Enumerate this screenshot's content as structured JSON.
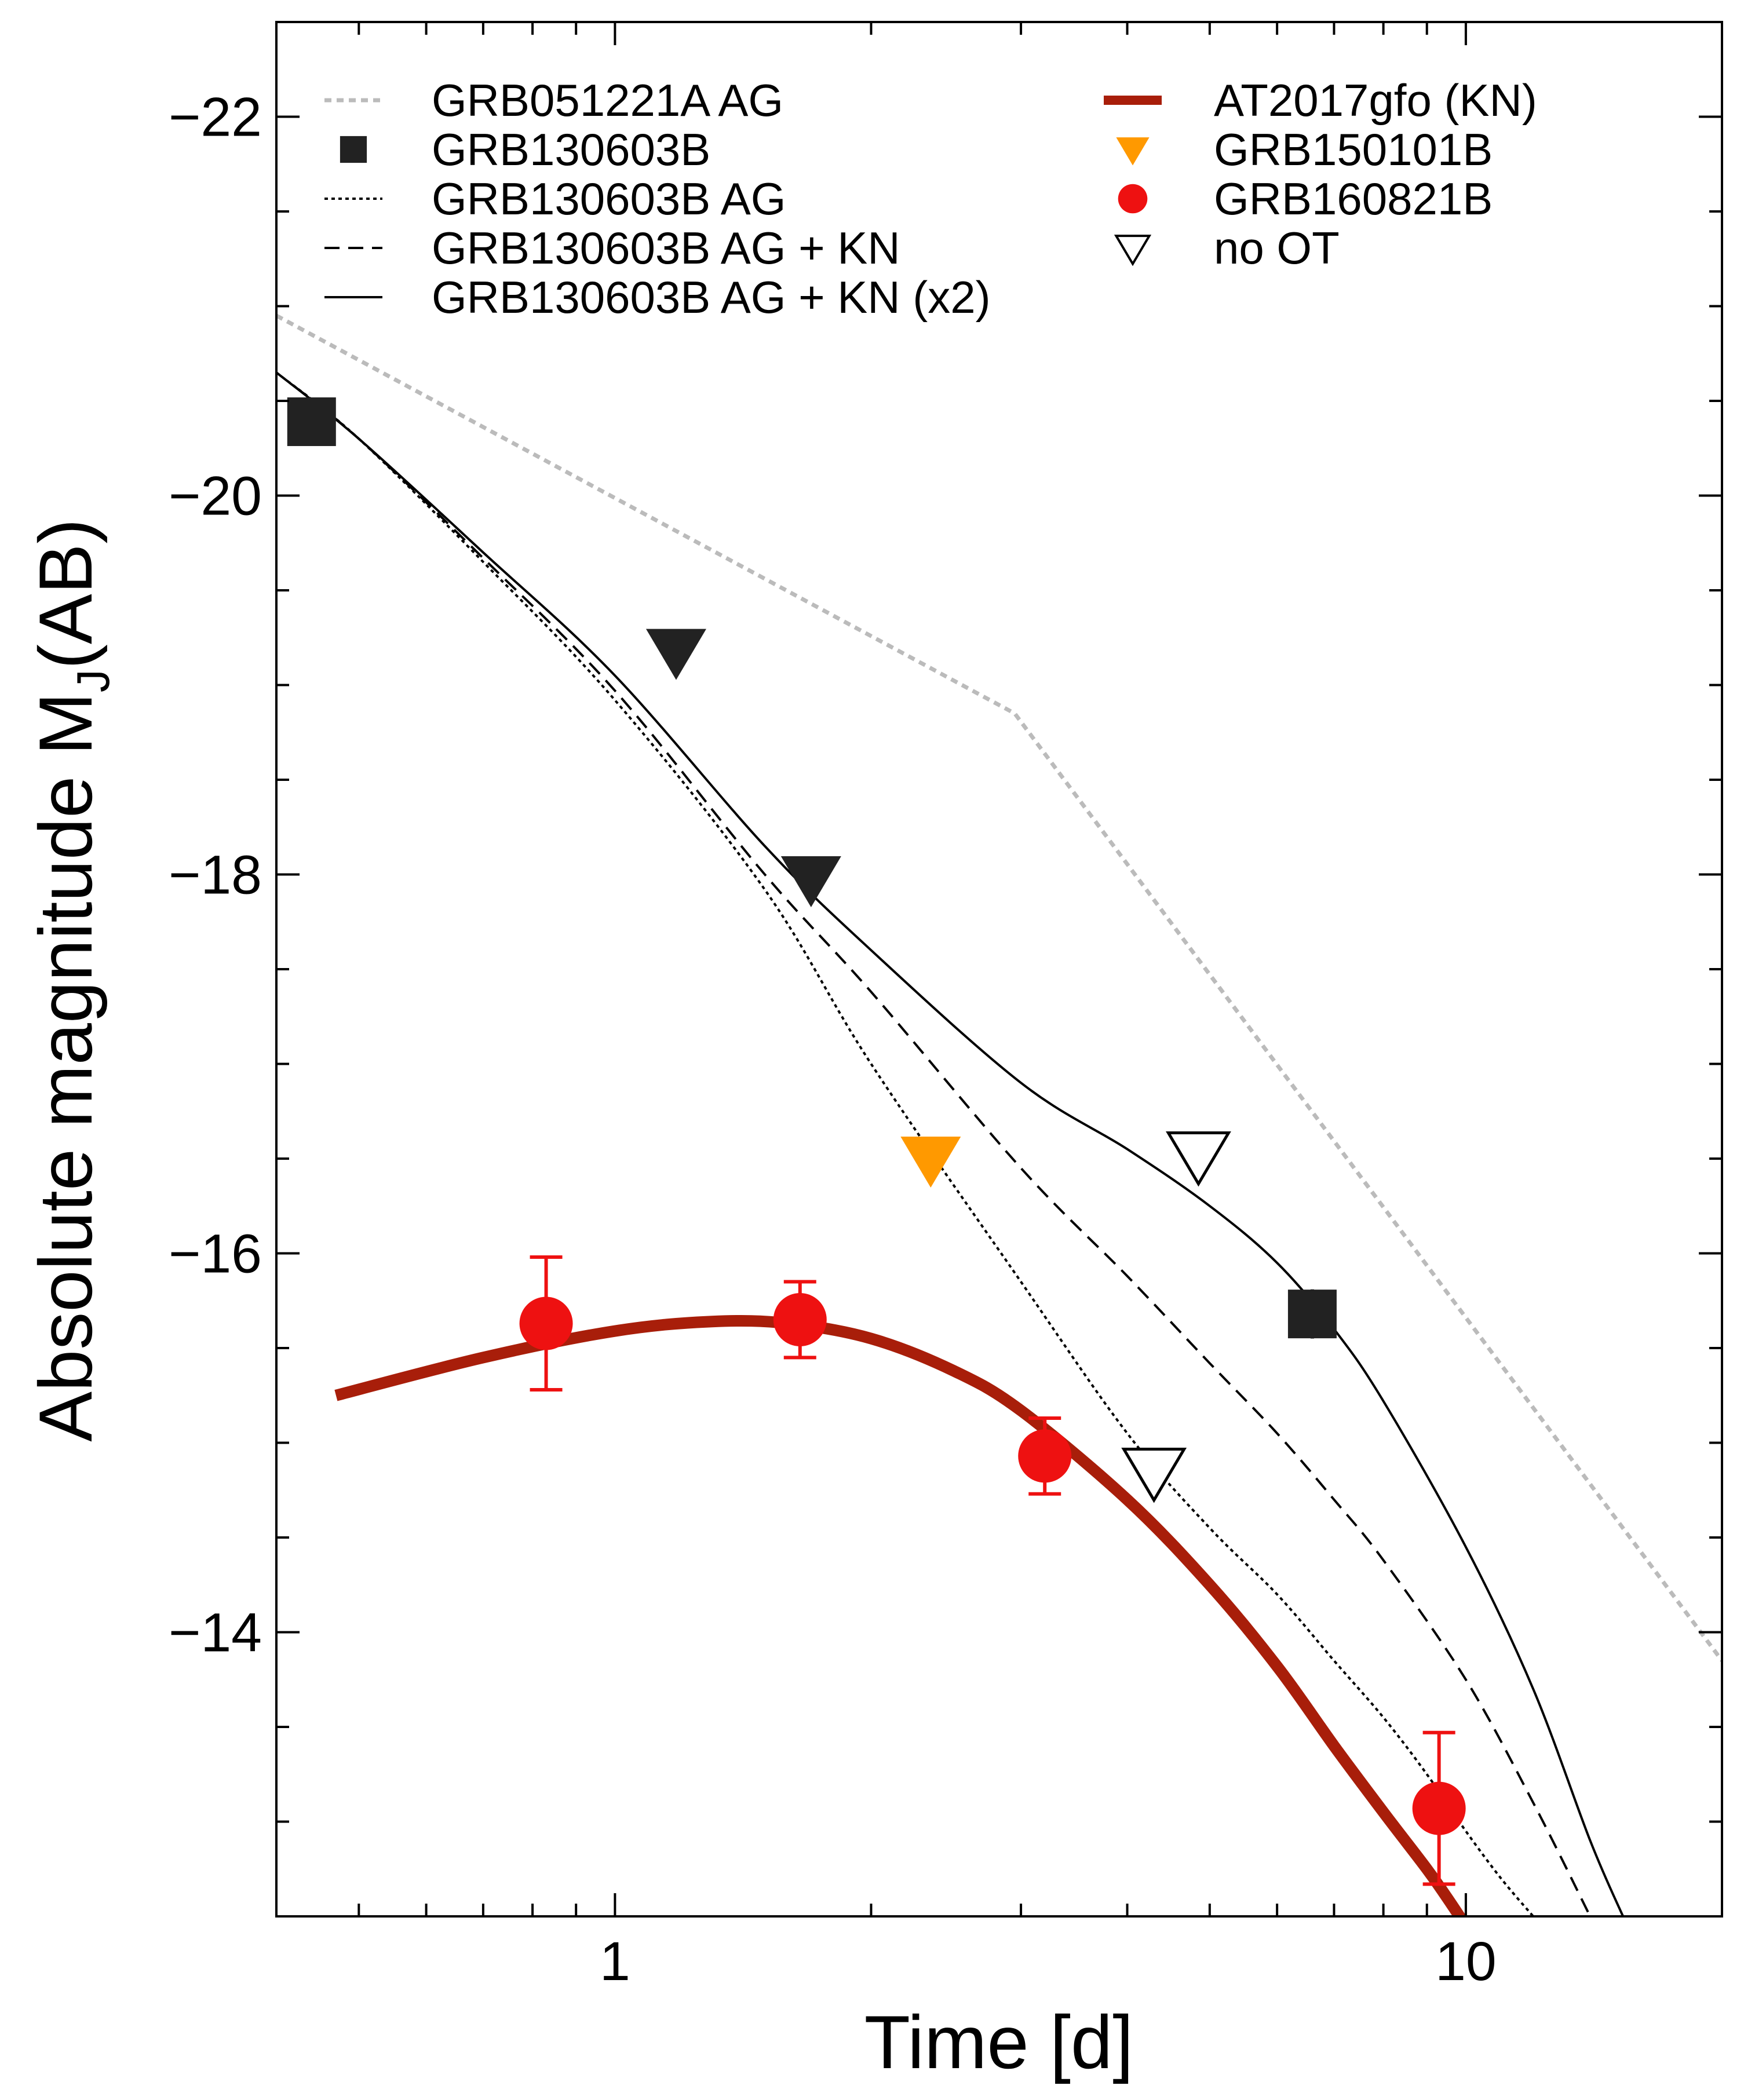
{
  "chart_data": {
    "type": "scatter",
    "xscale": "log",
    "xlim": [
      0.4,
      20
    ],
    "ylim": [
      -12.5,
      -22.5
    ],
    "xlabel": "Time [d]",
    "ylabel_main": "Absolute magnitude  M",
    "ylabel_sub": "J",
    "ylabel_tail": "(AB)",
    "x_ticks": [
      {
        "value": 1,
        "label": "1"
      },
      {
        "value": 10,
        "label": "10"
      }
    ],
    "y_ticks": [
      {
        "value": -22,
        "label": "−22"
      },
      {
        "value": -20,
        "label": "−20"
      },
      {
        "value": -18,
        "label": "−18"
      },
      {
        "value": -16,
        "label": "−16"
      },
      {
        "value": -14,
        "label": "−14"
      }
    ],
    "colors": {
      "grb051221a_ag": "#bbbbbb",
      "grb130603b": "#222222",
      "at2017gfo": "#a81e0a",
      "grb150101b": "#ff9900",
      "grb160821b": "#ee1111",
      "no_ot": "#000000"
    },
    "series": [
      {
        "id": "grb051221a_ag",
        "name": "GRB051221A AG",
        "kind": "line",
        "style": "gray-dotted",
        "x": [
          0.4,
          2.95,
          20
        ],
        "y": [
          -20.95,
          -18.85,
          -13.85
        ]
      },
      {
        "id": "grb130603b_ag",
        "name": "GRB130603B AG",
        "kind": "line",
        "style": "dotted",
        "x": [
          0.4,
          0.5,
          0.7,
          1.0,
          1.5,
          2.0,
          3.0,
          4.0,
          5.0,
          6.0,
          7.0,
          8.0,
          9.0,
          10.0,
          11.0,
          12.0
        ],
        "y": [
          -20.65,
          -20.3,
          -19.65,
          -18.92,
          -17.92,
          -17.0,
          -15.85,
          -15.05,
          -14.55,
          -14.2,
          -13.85,
          -13.55,
          -13.25,
          -12.95,
          -12.7,
          -12.5
        ]
      },
      {
        "id": "grb130603b_ag_kn",
        "name": "GRB130603B AG + KN",
        "kind": "line",
        "style": "dashed",
        "x": [
          0.4,
          0.5,
          0.7,
          1.0,
          1.5,
          2.0,
          3.0,
          4.0,
          5.0,
          6.0,
          7.0,
          8.0,
          10.0,
          12.0,
          14.0
        ],
        "y": [
          -20.65,
          -20.3,
          -19.67,
          -18.97,
          -18.0,
          -17.38,
          -16.45,
          -15.88,
          -15.42,
          -15.05,
          -14.7,
          -14.38,
          -13.75,
          -13.1,
          -12.5
        ]
      },
      {
        "id": "grb130603b_ag_kn_x2",
        "name": "GRB130603B AG + KN (x2)",
        "kind": "line",
        "style": "solid",
        "x": [
          0.4,
          0.5,
          0.7,
          1.0,
          1.5,
          2.0,
          3.0,
          4.0,
          5.0,
          6.0,
          7.0,
          8.0,
          10.0,
          12.0,
          14.0,
          15.3
        ],
        "y": [
          -20.65,
          -20.3,
          -19.7,
          -19.05,
          -18.15,
          -17.6,
          -16.9,
          -16.55,
          -16.25,
          -15.95,
          -15.6,
          -15.22,
          -14.45,
          -13.7,
          -12.9,
          -12.5
        ]
      },
      {
        "id": "at2017gfo",
        "name": "AT2017gfo (KN)",
        "kind": "line",
        "style": "thick",
        "x": [
          0.47,
          0.7,
          1.0,
          1.3,
          1.6,
          2.0,
          2.5,
          3.0,
          4.0,
          5.0,
          6.0,
          7.0,
          8.0,
          9.0,
          9.5,
          10.0
        ],
        "y": [
          -15.25,
          -15.45,
          -15.59,
          -15.64,
          -15.63,
          -15.55,
          -15.38,
          -15.17,
          -14.7,
          -14.25,
          -13.82,
          -13.4,
          -13.05,
          -12.75,
          -12.6,
          -12.45
        ]
      },
      {
        "id": "grb130603b",
        "name": "GRB130603B",
        "kind": "points",
        "marker": "square",
        "points": [
          {
            "x": 0.44,
            "y": -20.39,
            "err": [
              0,
              0
            ]
          },
          {
            "x": 6.6,
            "y": -15.68,
            "err": [
              0.13,
              0.13
            ]
          }
        ]
      },
      {
        "id": "grb130603b_limits",
        "name": "GRB130603B upper limits",
        "kind": "points",
        "marker": "triangle-down-filled",
        "points": [
          {
            "x": 1.18,
            "y": -19.18
          },
          {
            "x": 1.7,
            "y": -17.98
          }
        ]
      },
      {
        "id": "grb150101b",
        "name": "GRB150101B",
        "kind": "points",
        "marker": "triangle-down-orange",
        "points": [
          {
            "x": 2.35,
            "y": -16.5
          }
        ]
      },
      {
        "id": "grb160821b",
        "name": "GRB160821B",
        "kind": "points",
        "marker": "circle",
        "points": [
          {
            "x": 0.83,
            "y": -15.63,
            "err": [
              0.35,
              0.35
            ]
          },
          {
            "x": 1.65,
            "y": -15.65,
            "err": [
              0.2,
              0.2
            ]
          },
          {
            "x": 3.2,
            "y": -14.93,
            "err": [
              0.2,
              0.2
            ]
          },
          {
            "x": 9.3,
            "y": -13.07,
            "err": [
              0.4,
              0.4
            ]
          }
        ]
      },
      {
        "id": "no_ot",
        "name": "no OT",
        "kind": "points",
        "marker": "triangle-down-open",
        "points": [
          {
            "x": 4.3,
            "y": -14.85
          },
          {
            "x": 4.85,
            "y": -16.52
          }
        ]
      }
    ],
    "legend": {
      "placement": "top",
      "left": [
        {
          "label": "GRB051221A AG",
          "symbol": "gray-dotted"
        },
        {
          "label": "GRB130603B",
          "symbol": "square"
        },
        {
          "label": "GRB130603B AG",
          "symbol": "dotted"
        },
        {
          "label": "GRB130603B AG + KN",
          "symbol": "dashed"
        },
        {
          "label": "GRB130603B AG + KN (x2)",
          "symbol": "solid"
        }
      ],
      "right": [
        {
          "label": "AT2017gfo (KN)",
          "symbol": "thick"
        },
        {
          "label": "GRB150101B",
          "symbol": "triangle-down-orange"
        },
        {
          "label": "GRB160821B",
          "symbol": "circle"
        },
        {
          "label": "no OT",
          "symbol": "triangle-down-open"
        }
      ]
    }
  }
}
